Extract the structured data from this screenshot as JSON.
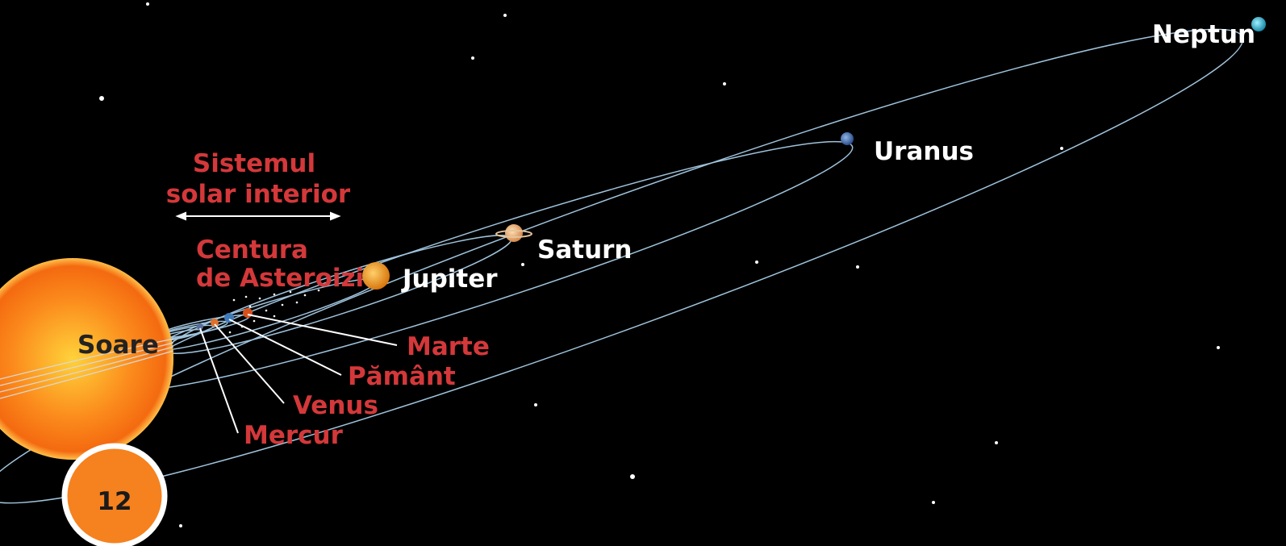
{
  "sun": "Soare",
  "inner_system": {
    "line1": "Sistemul",
    "line2": "solar interior"
  },
  "asteroid_belt": {
    "line1": "Centura",
    "line2": "de Asteroizi"
  },
  "planets": [
    {
      "name": "Mercur"
    },
    {
      "name": "Venus"
    },
    {
      "name": "Pământ"
    },
    {
      "name": "Marte"
    },
    {
      "name": "Jupiter"
    },
    {
      "name": "Saturn"
    },
    {
      "name": "Uranus"
    },
    {
      "name": "Neptun"
    }
  ],
  "page_number": "12"
}
